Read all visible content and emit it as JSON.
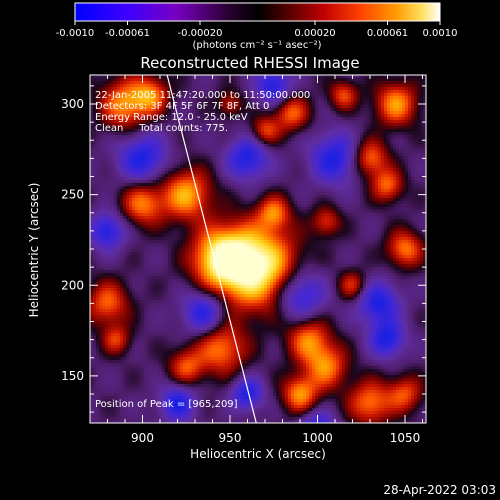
{
  "colorbar": {
    "min_label": "-0.0010",
    "ticks": [
      "-0.0010",
      "-0.00061",
      "-0.00020",
      "0.00020",
      "0.00061",
      "0.0010"
    ],
    "units": "(photons cm⁻² s⁻¹ asec⁻²)",
    "colors": [
      "#0000ff",
      "#3a00ff",
      "#7a00c8",
      "#2a0020",
      "#000000",
      "#400000",
      "#b00000",
      "#ff3800",
      "#ff9000",
      "#ffd800",
      "#ffffa0",
      "#ffffff"
    ]
  },
  "plot": {
    "title": "Reconstructed RHESSI Image",
    "xlabel": "Heliocentric X (arcsec)",
    "ylabel": "Heliocentric Y (arcsec)",
    "x_ticks": [
      "900",
      "950",
      "1000",
      "1050"
    ],
    "y_ticks": [
      "300",
      "250",
      "200",
      "150"
    ],
    "info_lines": [
      "22-Jan-2005 11:47:20.000 to 11:50:00.000",
      "Detectors: 3F 4F 5F 6F 7F 8F, Att 0",
      "Energy Range: 12.0 - 25.0 keV",
      "Clean     Total counts: 775."
    ],
    "peak_label": "Position of Peak = [965,209]"
  },
  "footer": {
    "timestamp": "28-Apr-2022 03:03"
  },
  "chart_data": {
    "type": "heatmap",
    "title": "Reconstructed RHESSI Image",
    "xlabel": "Heliocentric X (arcsec)",
    "ylabel": "Heliocentric Y (arcsec)",
    "xlim": [
      870,
      1062
    ],
    "ylim": [
      124,
      316
    ],
    "x_ticks": [
      900,
      950,
      1000,
      1050
    ],
    "y_ticks": [
      150,
      200,
      250,
      300
    ],
    "colorbar_range": [
      -0.001,
      0.001
    ],
    "colorbar_ticks": [
      -0.001,
      -0.00061,
      -0.0002,
      0.0002,
      0.00061,
      0.001
    ],
    "peak": [
      965,
      209
    ],
    "limb_line": [
      [
        913,
        320
      ],
      [
        965,
        124
      ]
    ]
  }
}
